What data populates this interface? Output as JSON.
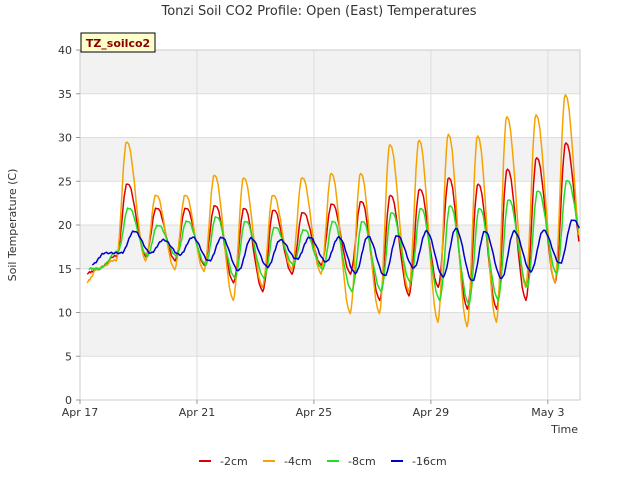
{
  "chart_data": {
    "type": "line",
    "title": "Tonzi Soil CO2 Profile: Open (East) Temperatures",
    "xlabel": "Time",
    "ylabel": "Soil Temperature (C)",
    "badge": "TZ_soilco2",
    "xlim": [
      0,
      17.1
    ],
    "ylim": [
      0,
      40
    ],
    "x_unit": "days since Apr 17",
    "x_ticks": [
      {
        "x": 0,
        "label": "Apr 17"
      },
      {
        "x": 4,
        "label": "Apr 21"
      },
      {
        "x": 8,
        "label": "Apr 25"
      },
      {
        "x": 12,
        "label": "Apr 29"
      },
      {
        "x": 16,
        "label": "May 3"
      }
    ],
    "y_ticks": [
      0,
      5,
      10,
      15,
      20,
      25,
      30,
      35,
      40
    ],
    "grid": true,
    "legend_position": "bottom",
    "colors": {
      "-2cm": "#dd0000",
      "-4cm": "#f5a300",
      "-8cm": "#22dd22",
      "-16cm": "#0000cc",
      "band": "#f2f2f2",
      "grid": "#dddddd"
    },
    "daily": {
      "days": [
        "Apr 17",
        "Apr 18",
        "Apr 19",
        "Apr 20",
        "Apr 21",
        "Apr 22",
        "Apr 23",
        "Apr 24",
        "Apr 25",
        "Apr 26",
        "Apr 27",
        "Apr 28",
        "Apr 29",
        "Apr 30",
        "May 1",
        "May 2",
        "May 3",
        "May 4"
      ],
      "series": [
        {
          "name": "-2cm",
          "max": [
            15,
            24.8,
            22,
            22,
            22.3,
            22,
            21.8,
            21.5,
            22.5,
            22.8,
            23.5,
            24.2,
            25.5,
            24.8,
            26.5,
            27.8,
            29.5,
            29.8
          ],
          "min": [
            14.5,
            16.5,
            16.5,
            16,
            15.5,
            13.5,
            12.5,
            14.5,
            15.5,
            14.5,
            11.5,
            12,
            13,
            10.5,
            10.5,
            11.5,
            13.5,
            15
          ]
        },
        {
          "name": "-4cm",
          "max": [
            15,
            29.6,
            23.5,
            23.5,
            25.8,
            25.5,
            23.5,
            25.5,
            26,
            26,
            29.3,
            29.8,
            30.5,
            30.3,
            32.5,
            32.7,
            35,
            35
          ],
          "min": [
            13.5,
            16,
            16,
            15,
            14.8,
            11.5,
            13,
            15,
            14.5,
            10,
            10,
            12.5,
            9,
            8.5,
            9,
            13,
            13.5,
            14.5
          ]
        },
        {
          "name": "-8cm",
          "max": [
            15,
            22,
            20,
            20.5,
            21,
            20.5,
            19.8,
            19.5,
            20.5,
            20.5,
            21.5,
            22,
            22.3,
            22,
            23,
            24,
            25.2,
            25.5
          ],
          "min": [
            15,
            17,
            16.5,
            16.5,
            15.5,
            14,
            14,
            15.5,
            15,
            12.5,
            12.5,
            13.5,
            11.5,
            11,
            11.5,
            13,
            14.5,
            16.5
          ]
        },
        {
          "name": "-16cm",
          "max": [
            16.8,
            19.3,
            18.3,
            18.6,
            18.6,
            18.5,
            18.3,
            18.6,
            18.6,
            18.7,
            18.8,
            19.3,
            19.6,
            19.3,
            19.3,
            19.4,
            20.6,
            21.0
          ],
          "min": [
            15.5,
            16.8,
            16.8,
            16.6,
            15.9,
            14.8,
            15.2,
            16.1,
            15.8,
            14.5,
            14.2,
            15.1,
            14.1,
            13.6,
            13.9,
            14.7,
            15.6,
            17.9
          ]
        }
      ]
    }
  },
  "legend": {
    "items": [
      {
        "label": "-2cm",
        "color": "#dd0000"
      },
      {
        "label": "-4cm",
        "color": "#f5a300"
      },
      {
        "label": "-8cm",
        "color": "#22dd22"
      },
      {
        "label": "-16cm",
        "color": "#0000cc"
      }
    ]
  }
}
